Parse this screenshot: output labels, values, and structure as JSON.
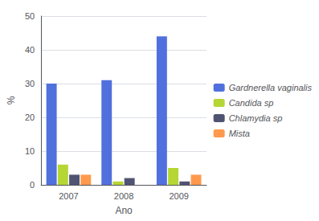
{
  "chart_data": {
    "type": "bar",
    "categories": [
      "2007",
      "2008",
      "2009"
    ],
    "series": [
      {
        "name": "Gardnerella vaginalis",
        "values": [
          30,
          31,
          44
        ]
      },
      {
        "name": "Candida sp",
        "values": [
          6,
          1,
          5
        ]
      },
      {
        "name": "Chlamydia sp",
        "values": [
          3,
          2,
          1
        ]
      },
      {
        "name": "Mista",
        "values": [
          3,
          0,
          3
        ]
      }
    ],
    "xlabel": "Ano",
    "ylabel": "%",
    "ylim": [
      0,
      50
    ],
    "yticks": [
      0,
      10,
      20,
      30,
      40,
      50
    ],
    "grid": true,
    "legend": "right"
  }
}
